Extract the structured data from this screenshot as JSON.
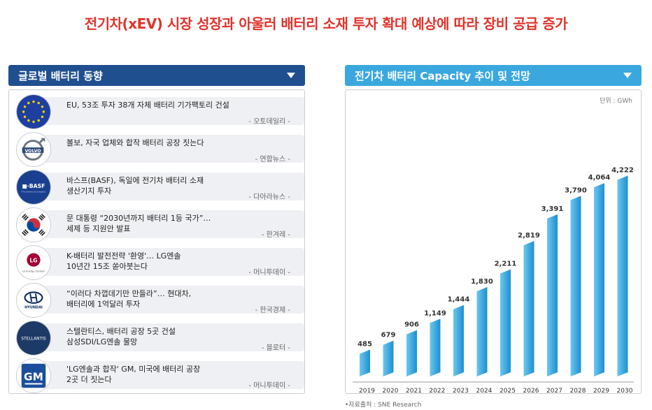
{
  "title": "전기차(xEV) 시장 성장과 아울러 배터리 소재 투자 확대 예상에 따라 장비 공급 증가",
  "left_panel": {
    "title": "글로벌 배터리 동향",
    "items": [
      {
        "logo": "eu-flag-icon",
        "text": "EU, 53조 투자 38개 자체 배터리 기가팩토리 건설",
        "source": "- 오토데일리 -"
      },
      {
        "logo": "volvo-logo-icon",
        "text": "볼보, 자국 업체와 합작 배터리 공장 짓는다",
        "source": "- 연합뉴스 -"
      },
      {
        "logo": "basf-logo-icon",
        "text": "바스프(BASF), 독일에 전기차 배터리 소재\n생산기지 투자",
        "source": "- 다아라뉴스 -"
      },
      {
        "logo": "korea-flag-icon",
        "text": "문 대통령 “2030년까지 배터리 1등 국가”…\n세제 등 지원안 발표",
        "source": "- 한겨레 -"
      },
      {
        "logo": "lg-energy-logo-icon",
        "text": "K-배터리 발전전략 '환영'… LG엔솔\n10년간 15조 쏟아붓는다",
        "source": "- 머니투데이 -"
      },
      {
        "logo": "hyundai-logo-icon",
        "text": "“이러다 차껍데기만 만들라”… 현대차,\n배터리에 1억달러 투자",
        "source": "- 한국경제 -"
      },
      {
        "logo": "stellantis-logo-icon",
        "text": "스텔란티스, 배터리 공장 5곳 건설\n삼성SDI/LG엔솔 물망",
        "source": "- 블로터 -"
      },
      {
        "logo": "gm-logo-icon",
        "text": "'LG엔솔과 합작' GM, 미국에 배터리 공장\n2곳 더 짓는다",
        "source": "- 머니투데이 -"
      }
    ],
    "logo_text": {
      "basf": "■·BASF",
      "basf_sub": "The Chemical Company",
      "lg": "LG",
      "lg_sub": "LG Energy Solution",
      "hyundai": "HYUNDAI",
      "stellantis": "STELLANTIS",
      "gm": "GM",
      "volvo": "VOLVO"
    }
  },
  "right_panel": {
    "title": "전기차 배터리 Capacity 추이 및 전망",
    "unit": "단위 : GWh"
  },
  "source_note": "•자료출처 : SNE Research",
  "colors": {
    "title_red": "#e0332b",
    "left_header": "#1f4f8f",
    "right_header": "#3aa8df",
    "bar_light": "#5cc0ee",
    "bar_dark": "#1f8fd0"
  },
  "chart_data": {
    "type": "bar",
    "categories": [
      "2019",
      "2020",
      "2021",
      "2022",
      "2023",
      "2024",
      "2025",
      "2026",
      "2027",
      "2028",
      "2029",
      "2030"
    ],
    "values": [
      485,
      679,
      906,
      1149,
      1444,
      1830,
      2211,
      2819,
      3391,
      3790,
      4064,
      4222
    ],
    "value_labels": [
      "485",
      "679",
      "906",
      "1,149",
      "1,444",
      "1,830",
      "2,211",
      "2,819",
      "3,391",
      "3,790",
      "4,064",
      "4,222"
    ],
    "title": "전기차 배터리 Capacity 추이 및 전망",
    "xlabel": "",
    "ylabel": "",
    "unit": "GWh",
    "ylim": [
      0,
      4500
    ],
    "grid": false,
    "legend": "none"
  }
}
